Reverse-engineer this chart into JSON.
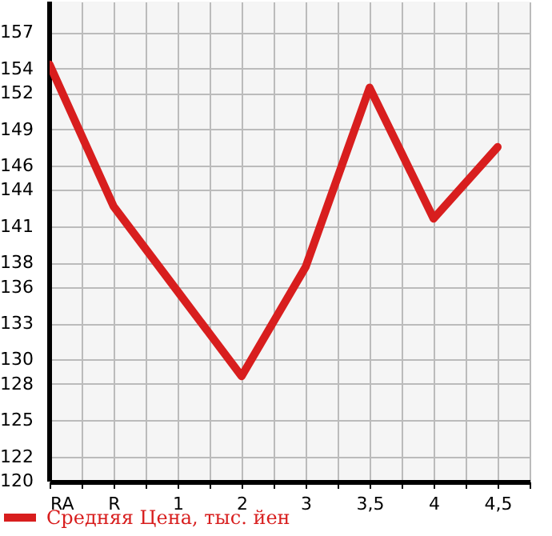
{
  "chart_data": {
    "type": "line",
    "categories": [
      "RA",
      "R",
      "1",
      "2",
      "3",
      "3,5",
      "4",
      "4,5"
    ],
    "series": [
      {
        "name": "Средняя Цена, тыс. йен",
        "color": "#d81e1e",
        "values": [
          154.4,
          142.7,
          135.7,
          128.7,
          137.7,
          152.5,
          141.7,
          147.6
        ]
      }
    ],
    "ylim": [
      120,
      159.6
    ],
    "yticks": [
      120,
      122,
      125,
      128,
      130,
      133,
      136,
      138,
      141,
      144,
      146,
      149,
      152,
      154,
      157
    ],
    "grid": true,
    "legend": "bottom left",
    "marker": "none",
    "line_style": "solid"
  }
}
